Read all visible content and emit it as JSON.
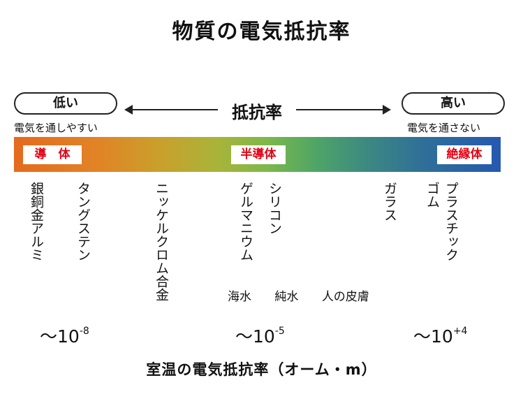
{
  "title": "物質の電気抵抗率",
  "scale_header": {
    "low_label": "低い",
    "low_caption": "電気を通しやすい",
    "center_label": "抵抗率",
    "high_label": "高い",
    "high_caption": "電気を通さない"
  },
  "bar": {
    "gradient_colors": [
      "#e56a1e",
      "#7db84a",
      "#2559b0"
    ],
    "badge_text_color": "#e60012",
    "conductor_label": "導　体",
    "semiconductor_label": "半導体",
    "insulator_label": "絶縁体"
  },
  "materials": {
    "col1": "銀銅金アルミ",
    "col2": "タングステン",
    "col3": "ニッケルクロム合金",
    "col4": "ゲルマニウム",
    "col5": "シリコン",
    "col6": "ガラス",
    "col7": "ゴム",
    "col8": "プラスチック"
  },
  "water_items": [
    "海水",
    "純水",
    "人の皮膚"
  ],
  "scale_values": {
    "low": {
      "base": "〜10",
      "exp": "-8"
    },
    "mid": {
      "base": "〜10",
      "exp": "-5"
    },
    "high": {
      "base": "〜10",
      "exp": "+4"
    }
  },
  "footer": "室温の電気抵抗率（オーム・m）"
}
